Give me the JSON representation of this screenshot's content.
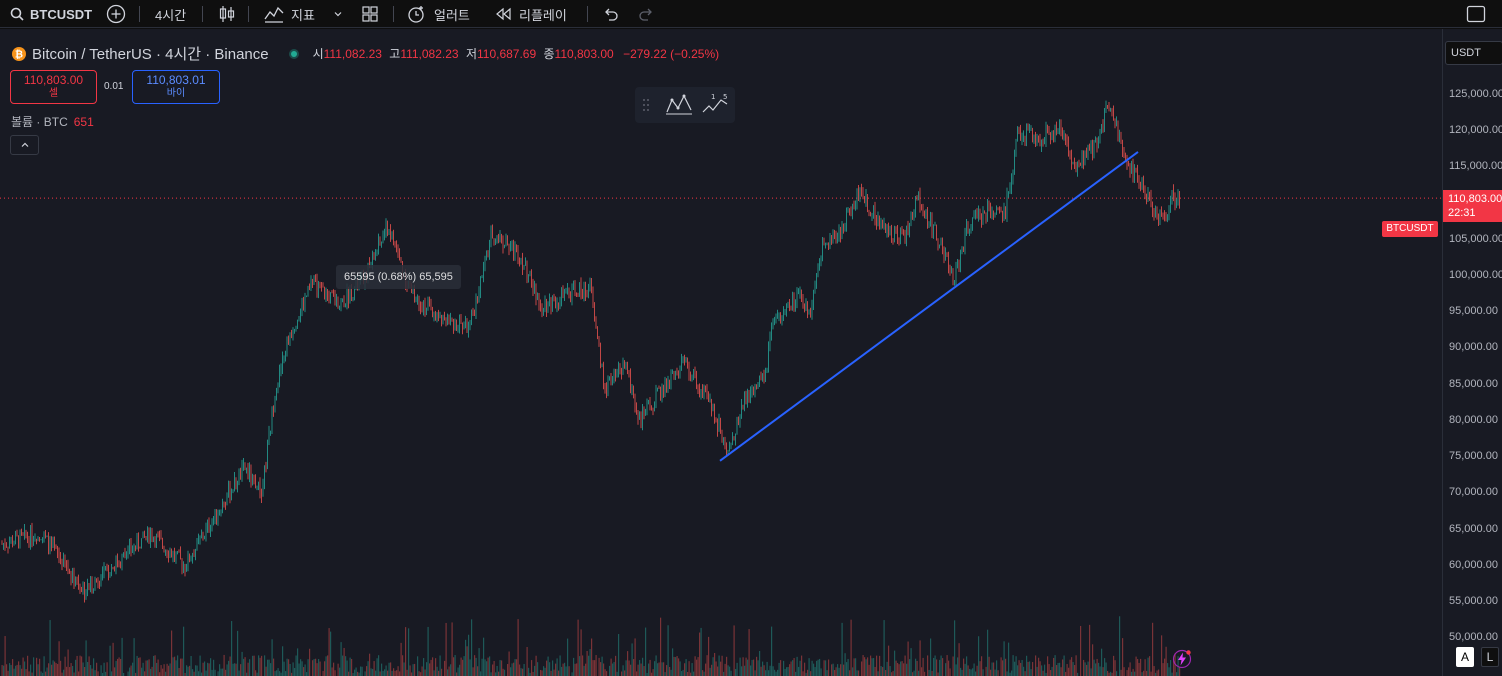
{
  "toolbar": {
    "symbol": "BTCUSDT",
    "interval": "4시간",
    "indicators_label": "지표",
    "alert_label": "얼러트",
    "replay_label": "리플레이"
  },
  "legend": {
    "title": "Bitcoin / TetherUS · 4시간 · Binance",
    "open_key": "시",
    "open": "111,082.23",
    "high_key": "고",
    "high": "111,082.23",
    "low_key": "저",
    "low": "110,687.69",
    "close_key": "종",
    "close": "110,803.00",
    "change": "−279.22 (−0.25%)"
  },
  "trade": {
    "sell_price": "110,803.00",
    "sell_label": "셀",
    "spread": "0.01",
    "buy_price": "110,803.01",
    "buy_label": "바이"
  },
  "volume": {
    "label": "볼륨 · BTC",
    "value": "651"
  },
  "tooltip": "65595 (0.68%) 65,595",
  "price_axis": {
    "currency": "USDT",
    "labels": [
      "125,000.00",
      "120,000.00",
      "115,000.00",
      "105,000.00",
      "100,000.00",
      "95,000.00",
      "90,000.00",
      "85,000.00",
      "80,000.00",
      "75,000.00",
      "70,000.00",
      "65,000.00",
      "60,000.00",
      "55,000.00",
      "50,000.00"
    ],
    "current_price": "110,803.00",
    "countdown": "22:31",
    "symbol_tag": "BTCUSDT"
  },
  "scale_buttons": {
    "auto": "A",
    "log": "L"
  },
  "colors": {
    "up": "#26a69a",
    "down": "#ef5350",
    "trendline": "#2962ff",
    "price_tag": "#f23645"
  }
}
